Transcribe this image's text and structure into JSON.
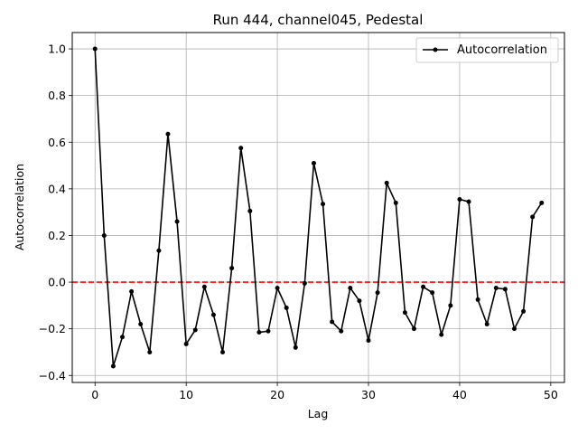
{
  "chart_data": {
    "type": "line",
    "title": "Run 444, channel045, Pedestal",
    "xlabel": "Lag",
    "ylabel": "Autocorrelation",
    "xlim": [
      -2.5,
      51.5
    ],
    "ylim": [
      -0.43,
      1.07
    ],
    "xticks": [
      0,
      10,
      20,
      30,
      40,
      50
    ],
    "yticks": [
      -0.4,
      -0.2,
      0.0,
      0.2,
      0.4,
      0.6,
      0.8,
      1.0
    ],
    "xtick_labels": [
      "0",
      "10",
      "20",
      "30",
      "40",
      "50"
    ],
    "ytick_labels": [
      "−0.4",
      "−0.2",
      "0.0",
      "0.2",
      "0.4",
      "0.6",
      "0.8",
      "1.0"
    ],
    "grid": true,
    "legend_position": "top-right",
    "series": [
      {
        "name": "Autocorrelation",
        "color": "#000000",
        "marker": "dot",
        "x": [
          0,
          1,
          2,
          3,
          4,
          5,
          6,
          7,
          8,
          9,
          10,
          11,
          12,
          13,
          14,
          15,
          16,
          17,
          18,
          19,
          20,
          21,
          22,
          23,
          24,
          25,
          26,
          27,
          28,
          29,
          30,
          31,
          32,
          33,
          34,
          35,
          36,
          37,
          38,
          39,
          40,
          41,
          42,
          43,
          44,
          45,
          46,
          47,
          48,
          49
        ],
        "values": [
          1.0,
          0.2,
          -0.36,
          -0.235,
          -0.04,
          -0.18,
          -0.3,
          0.135,
          0.635,
          0.26,
          -0.265,
          -0.205,
          -0.02,
          -0.14,
          -0.3,
          0.06,
          0.575,
          0.305,
          -0.215,
          -0.21,
          -0.025,
          -0.11,
          -0.28,
          -0.005,
          0.51,
          0.335,
          -0.17,
          -0.21,
          -0.025,
          -0.08,
          -0.25,
          -0.045,
          0.425,
          0.34,
          -0.13,
          -0.2,
          -0.02,
          -0.045,
          -0.225,
          -0.1,
          0.355,
          0.345,
          -0.075,
          -0.18,
          -0.025,
          -0.03,
          -0.2,
          -0.125,
          0.28,
          0.34
        ]
      }
    ],
    "reference_line": {
      "y": 0.0,
      "color": "#ff0000",
      "style": "dashed"
    }
  }
}
